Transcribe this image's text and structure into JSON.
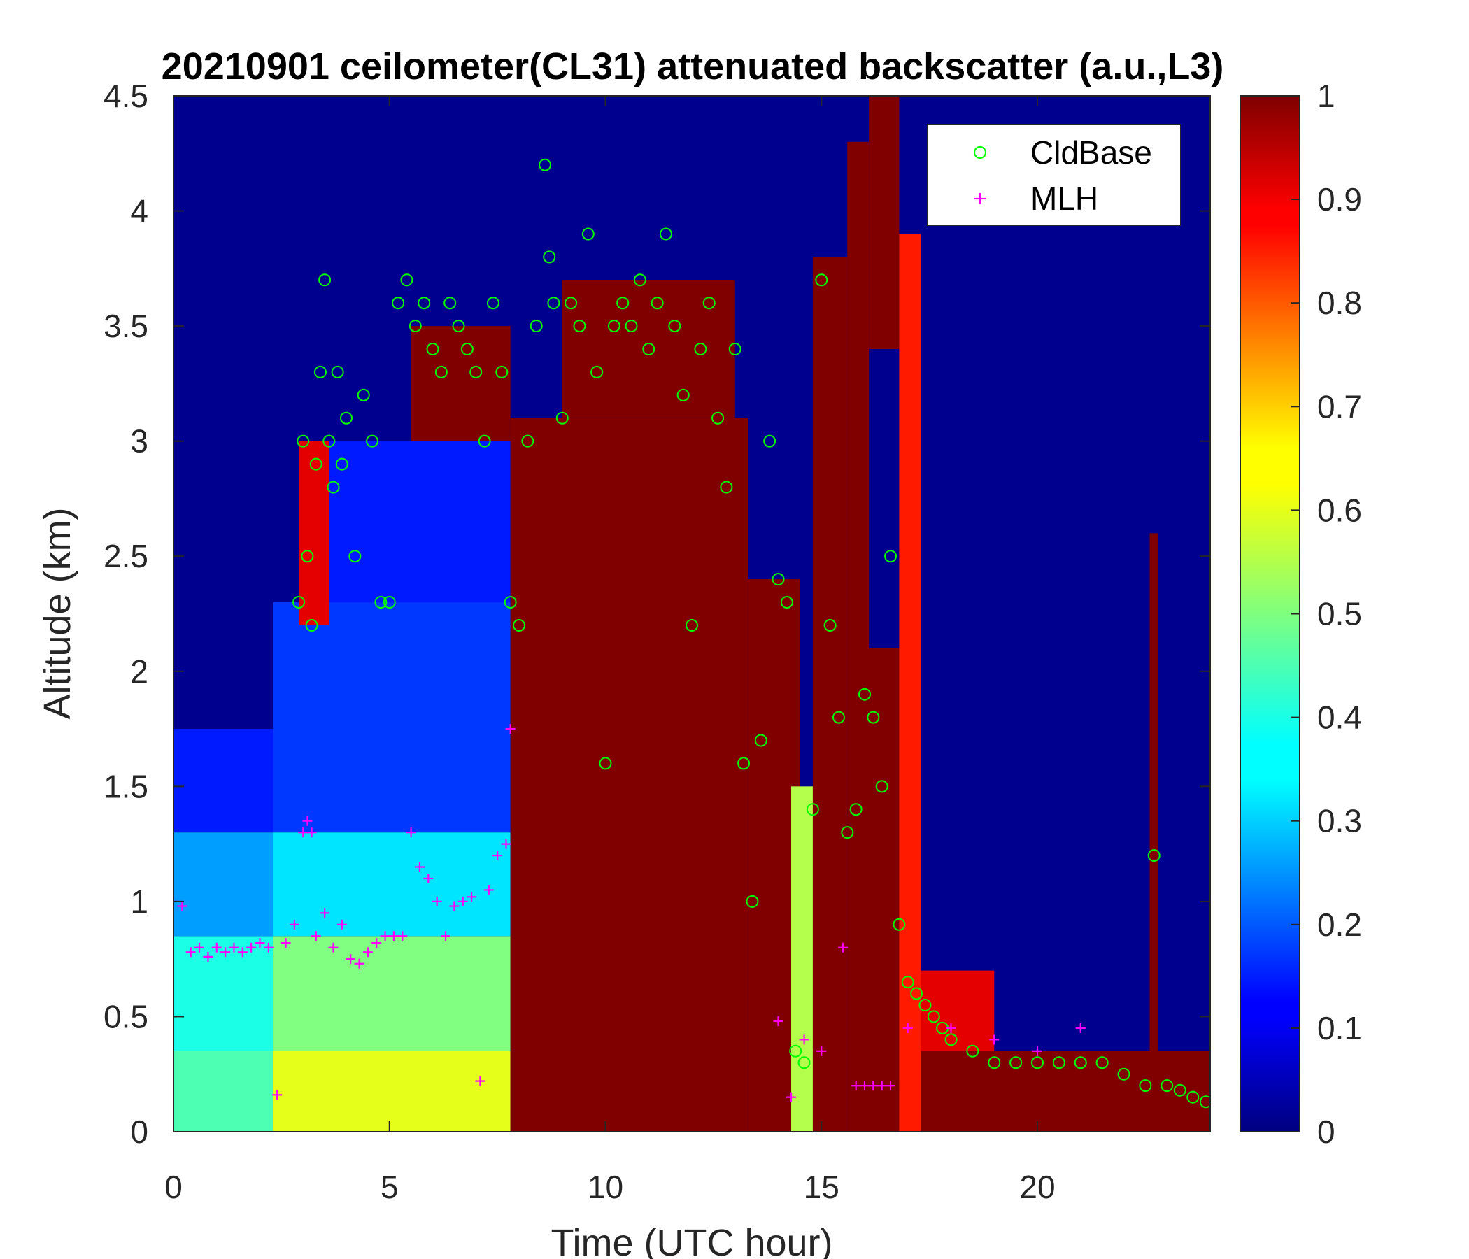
{
  "chart_data": {
    "type": "heatmap",
    "title": "20210901 ceilometer(CL31) attenuated backscatter (a.u.,L3)",
    "xlabel": "Time (UTC hour)",
    "ylabel": "Altitude (km)",
    "xlim": [
      0,
      24
    ],
    "ylim": [
      0,
      4.5
    ],
    "x_ticks": [
      0,
      5,
      10,
      15,
      20
    ],
    "y_ticks": [
      0,
      0.5,
      1,
      1.5,
      2,
      2.5,
      3,
      3.5,
      4,
      4.5
    ],
    "colorbar": {
      "colormap": "jet",
      "range": [
        0,
        1
      ],
      "ticks": [
        0,
        0.1,
        0.2,
        0.3,
        0.4,
        0.5,
        0.6,
        0.7,
        0.8,
        0.9,
        1
      ]
    },
    "legend": {
      "position": "top-right",
      "entries": [
        "CldBase",
        "MLH"
      ]
    },
    "legend_colors": {
      "CldBase": "#00ff00",
      "MLH": "#ff00ff"
    },
    "heatmap_regions": [
      {
        "t0": 0.0,
        "t1": 2.3,
        "z0": 0.0,
        "z1": 0.35,
        "value": 0.45
      },
      {
        "t0": 0.0,
        "t1": 2.3,
        "z0": 0.35,
        "z1": 0.85,
        "value": 0.4
      },
      {
        "t0": 0.0,
        "t1": 2.3,
        "z0": 0.85,
        "z1": 1.3,
        "value": 0.28
      },
      {
        "t0": 0.0,
        "t1": 2.3,
        "z0": 1.3,
        "z1": 1.75,
        "value": 0.15
      },
      {
        "t0": 2.3,
        "t1": 7.8,
        "z0": 0.0,
        "z1": 0.35,
        "value": 0.6
      },
      {
        "t0": 2.3,
        "t1": 7.8,
        "z0": 0.35,
        "z1": 0.85,
        "value": 0.5
      },
      {
        "t0": 2.3,
        "t1": 7.8,
        "z0": 0.85,
        "z1": 1.3,
        "value": 0.35
      },
      {
        "t0": 2.3,
        "t1": 7.8,
        "z0": 1.3,
        "z1": 2.3,
        "value": 0.18
      },
      {
        "t0": 3.0,
        "t1": 7.8,
        "z0": 2.3,
        "z1": 3.0,
        "value": 0.15
      },
      {
        "t0": 5.5,
        "t1": 7.8,
        "z0": 3.0,
        "z1": 3.5,
        "value": 1.0
      },
      {
        "t0": 2.9,
        "t1": 3.6,
        "z0": 2.2,
        "z1": 3.0,
        "value": 0.9
      },
      {
        "t0": 7.8,
        "t1": 13.3,
        "z0": 0.0,
        "z1": 3.1,
        "value": 1.0
      },
      {
        "t0": 9.0,
        "t1": 13.0,
        "z0": 3.1,
        "z1": 3.7,
        "value": 1.0
      },
      {
        "t0": 13.3,
        "t1": 14.5,
        "z0": 0.0,
        "z1": 2.4,
        "value": 1.0
      },
      {
        "t0": 14.3,
        "t1": 15.0,
        "z0": 0.0,
        "z1": 1.5,
        "value": 0.55
      },
      {
        "t0": 14.8,
        "t1": 15.6,
        "z0": 0.0,
        "z1": 3.8,
        "value": 1.0
      },
      {
        "t0": 15.6,
        "t1": 16.1,
        "z0": 0.0,
        "z1": 4.3,
        "value": 1.0
      },
      {
        "t0": 16.1,
        "t1": 16.8,
        "z0": 3.4,
        "z1": 4.5,
        "value": 1.0
      },
      {
        "t0": 16.0,
        "t1": 16.9,
        "z0": 0.0,
        "z1": 2.1,
        "value": 1.0
      },
      {
        "t0": 16.8,
        "t1": 17.3,
        "z0": 0.0,
        "z1": 3.9,
        "value": 0.85
      },
      {
        "t0": 17.3,
        "t1": 24.0,
        "z0": 0.0,
        "z1": 0.35,
        "value": 1.0
      },
      {
        "t0": 17.3,
        "t1": 19.0,
        "z0": 0.35,
        "z1": 0.7,
        "value": 0.9
      },
      {
        "t0": 22.6,
        "t1": 22.8,
        "z0": 0.0,
        "z1": 2.6,
        "value": 1.0
      }
    ],
    "series": [
      {
        "name": "CldBase",
        "marker": "circle",
        "x": [
          2.9,
          3.0,
          3.1,
          3.2,
          3.3,
          3.4,
          3.5,
          3.6,
          3.7,
          3.8,
          3.9,
          4.0,
          4.2,
          4.4,
          4.6,
          4.8,
          5.0,
          5.2,
          5.4,
          5.6,
          5.8,
          6.0,
          6.2,
          6.4,
          6.6,
          6.8,
          7.0,
          7.2,
          7.4,
          7.6,
          7.8,
          8.0,
          8.2,
          8.4,
          8.6,
          8.7,
          8.8,
          9.0,
          9.2,
          9.4,
          9.6,
          9.8,
          10.0,
          10.2,
          10.4,
          10.6,
          10.8,
          11.0,
          11.2,
          11.4,
          11.6,
          11.8,
          12.0,
          12.2,
          12.4,
          12.6,
          12.8,
          13.0,
          13.2,
          13.4,
          13.6,
          13.8,
          14.0,
          14.2,
          14.4,
          14.6,
          14.8,
          15.0,
          15.2,
          15.4,
          15.6,
          15.8,
          16.0,
          16.2,
          16.4,
          16.6,
          16.8,
          17.0,
          17.2,
          17.4,
          17.6,
          17.8,
          18.0,
          18.5,
          19.0,
          19.5,
          20.0,
          20.5,
          21.0,
          21.5,
          22.0,
          22.5,
          22.7,
          23.0,
          23.3,
          23.6,
          23.9
        ],
        "y": [
          2.3,
          3.0,
          2.5,
          2.2,
          2.9,
          3.3,
          3.7,
          3.0,
          2.8,
          3.3,
          2.9,
          3.1,
          2.5,
          3.2,
          3.0,
          2.3,
          2.3,
          3.6,
          3.7,
          3.5,
          3.6,
          3.4,
          3.3,
          3.6,
          3.5,
          3.4,
          3.3,
          3.0,
          3.6,
          3.3,
          2.3,
          2.2,
          3.0,
          3.5,
          4.2,
          3.8,
          3.6,
          3.1,
          3.6,
          3.5,
          3.9,
          3.3,
          1.6,
          3.5,
          3.6,
          3.5,
          3.7,
          3.4,
          3.6,
          3.9,
          3.5,
          3.2,
          2.2,
          3.4,
          3.6,
          3.1,
          2.8,
          3.4,
          1.6,
          1.0,
          1.7,
          3.0,
          2.4,
          2.3,
          0.35,
          0.3,
          1.4,
          3.7,
          2.2,
          1.8,
          1.3,
          1.4,
          1.9,
          1.8,
          1.5,
          2.5,
          0.9,
          0.65,
          0.6,
          0.55,
          0.5,
          0.45,
          0.4,
          0.35,
          0.3,
          0.3,
          0.3,
          0.3,
          0.3,
          0.3,
          0.25,
          0.2,
          1.2,
          0.2,
          0.18,
          0.15,
          0.13
        ]
      },
      {
        "name": "MLH",
        "marker": "plus",
        "x": [
          0.0,
          0.2,
          0.4,
          0.6,
          0.8,
          1.0,
          1.2,
          1.4,
          1.6,
          1.8,
          2.0,
          2.2,
          2.4,
          2.6,
          2.8,
          3.0,
          3.1,
          3.2,
          3.3,
          3.5,
          3.7,
          3.9,
          4.1,
          4.3,
          4.5,
          4.7,
          4.9,
          5.1,
          5.3,
          5.5,
          5.7,
          5.9,
          6.1,
          6.3,
          6.5,
          6.7,
          6.9,
          7.1,
          7.3,
          7.5,
          7.7,
          7.8,
          14.0,
          14.3,
          14.6,
          15.0,
          15.5,
          15.8,
          16.0,
          16.2,
          16.4,
          16.6,
          17.0,
          18.0,
          19.0,
          20.0,
          21.0
        ],
        "y": [
          1.0,
          0.98,
          0.78,
          0.8,
          0.76,
          0.8,
          0.78,
          0.8,
          0.78,
          0.8,
          0.82,
          0.8,
          0.16,
          0.82,
          0.9,
          1.3,
          1.35,
          1.3,
          0.85,
          0.95,
          0.8,
          0.9,
          0.75,
          0.73,
          0.78,
          0.82,
          0.85,
          0.85,
          0.85,
          1.3,
          1.15,
          1.1,
          1.0,
          0.85,
          0.98,
          1.0,
          1.02,
          0.22,
          1.05,
          1.2,
          1.25,
          1.75,
          0.48,
          0.15,
          0.4,
          0.35,
          0.8,
          0.2,
          0.2,
          0.2,
          0.2,
          0.2,
          0.45,
          0.45,
          0.4,
          0.35,
          0.45
        ]
      }
    ]
  }
}
